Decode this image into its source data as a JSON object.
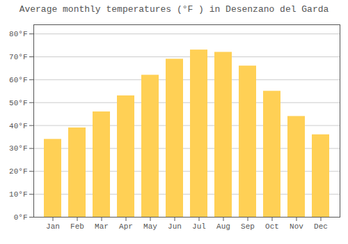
{
  "chart_data": {
    "type": "bar",
    "title": "Average monthly temperatures (°F ) in Desenzano del Garda",
    "categories": [
      "Jan",
      "Feb",
      "Mar",
      "Apr",
      "May",
      "Jun",
      "Jul",
      "Aug",
      "Sep",
      "Oct",
      "Nov",
      "Dec"
    ],
    "values": [
      34,
      39,
      46,
      53,
      62,
      69,
      73,
      72,
      66,
      55,
      44,
      36
    ],
    "color": "#FFD055",
    "ylim": [
      0,
      84
    ],
    "yticks": [
      {
        "value": 0,
        "label": "0°F"
      },
      {
        "value": 10,
        "label": "10°F"
      },
      {
        "value": 20,
        "label": "20°F"
      },
      {
        "value": 30,
        "label": "30°F"
      },
      {
        "value": 40,
        "label": "40°F"
      },
      {
        "value": 50,
        "label": "50°F"
      },
      {
        "value": 60,
        "label": "60°F"
      },
      {
        "value": 70,
        "label": "70°F"
      },
      {
        "value": 80,
        "label": "80°F"
      }
    ],
    "grid": true
  }
}
